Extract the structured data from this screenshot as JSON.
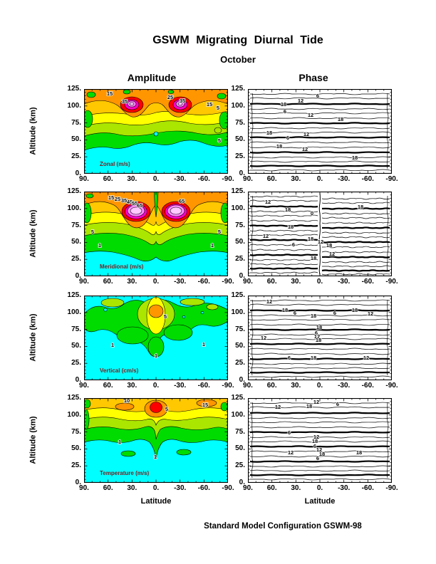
{
  "page": {
    "title": "GSWM Migrating Diurnal Tide",
    "subtitle": "October",
    "footer": "Standard Model Configuration GSWM-98"
  },
  "columns": {
    "left": "Amplitude",
    "right": "Phase"
  },
  "axes": {
    "x_label": "Latitude",
    "y_label": "Altitude (km)",
    "x_ticks": [
      "90.",
      "60.",
      "30.",
      "0.",
      "-30.",
      "-60.",
      "-90."
    ],
    "y_ticks": [
      "125.",
      "100.",
      "75.",
      "50.",
      "25.",
      "0."
    ],
    "x_range": [
      90,
      -90
    ],
    "y_range": [
      0,
      125
    ]
  },
  "colors": {
    "fill_scale": [
      "#00FFFF",
      "#00DC00",
      "#AAE600",
      "#FFFF00",
      "#FFC800",
      "#FF9600",
      "#FF0000",
      "#FF00C8",
      "#FF8CFF",
      "#FFC8FF"
    ],
    "contour_line": "#000000",
    "panel_label": "#7B1E1E",
    "background": "#FFFFFF"
  },
  "chart_data": [
    {
      "panel": "zonal-amplitude",
      "type": "contour",
      "quantity": "Zonal wind amplitude",
      "label": "Zonal (m/s)",
      "units": "m/s",
      "x_range": [
        90,
        -90
      ],
      "y_range": [
        0,
        125
      ],
      "contour_levels": [
        5,
        15,
        25,
        35,
        45
      ],
      "labels": [
        "35",
        "25",
        "35",
        "15",
        "5",
        "5",
        "15"
      ],
      "peaks": [
        {
          "lat": 30,
          "alt_km": 105,
          "value": 45
        },
        {
          "lat": -30,
          "alt_km": 105,
          "value": 45
        }
      ]
    },
    {
      "panel": "zonal-phase",
      "type": "contour",
      "quantity": "Zonal wind phase",
      "x_range": [
        90,
        -90
      ],
      "y_range": [
        0,
        125
      ],
      "contour_levels": [
        0,
        6,
        12,
        18
      ],
      "labels": [
        "6",
        "12",
        "18",
        "6",
        "12",
        "18",
        "18",
        "6",
        "12",
        "18",
        "12",
        "18"
      ]
    },
    {
      "panel": "meridional-amplitude",
      "type": "contour",
      "quantity": "Meridional wind amplitude",
      "label": "Meridional (m/s)",
      "units": "m/s",
      "x_range": [
        90,
        -90
      ],
      "y_range": [
        0,
        125
      ],
      "contour_levels": [
        1,
        5,
        15,
        25,
        35,
        45,
        55,
        65
      ],
      "labels": [
        "15",
        "25",
        "35",
        "45",
        "55",
        "65",
        "65",
        "5",
        "5",
        "1",
        "1"
      ],
      "peaks": [
        {
          "lat": 25,
          "alt_km": 95,
          "value": 70
        },
        {
          "lat": -25,
          "alt_km": 95,
          "value": 70
        }
      ]
    },
    {
      "panel": "meridional-phase",
      "type": "contour",
      "quantity": "Meridional wind phase",
      "x_range": [
        90,
        -90
      ],
      "y_range": [
        0,
        125
      ],
      "contour_levels": [
        0,
        6,
        12,
        18
      ],
      "labels": [
        "12",
        "18",
        "0",
        "18",
        "18",
        "12",
        "18",
        "6",
        "12",
        "18",
        "12",
        "18"
      ]
    },
    {
      "panel": "vertical-amplitude",
      "type": "contour",
      "quantity": "Vertical wind amplitude",
      "label": "Vertical (cm/s)",
      "units": "cm/s",
      "x_range": [
        90,
        -90
      ],
      "y_range": [
        0,
        125
      ],
      "contour_levels": [
        1,
        3,
        5
      ],
      "labels": [
        "5",
        "1",
        "1",
        "1"
      ],
      "peaks": [
        {
          "lat": 0,
          "alt_km": 100,
          "value": 7
        }
      ]
    },
    {
      "panel": "vertical-phase",
      "type": "contour",
      "quantity": "Vertical wind phase",
      "x_range": [
        90,
        -90
      ],
      "y_range": [
        0,
        125
      ],
      "contour_levels": [
        0,
        6,
        12,
        18
      ],
      "labels": [
        "12",
        "18",
        "6",
        "18",
        "6",
        "18",
        "12",
        "18",
        "6",
        "12",
        "18",
        "12",
        "6",
        "18",
        "12"
      ]
    },
    {
      "panel": "temperature-amplitude",
      "type": "contour",
      "quantity": "Temperature amplitude",
      "label": "Temperature (m/s)",
      "units": "m/s",
      "x_range": [
        90,
        -90
      ],
      "y_range": [
        0,
        125
      ],
      "contour_levels": [
        1,
        5,
        10,
        15
      ],
      "labels": [
        "10",
        "15",
        "5",
        "1",
        "1"
      ],
      "peaks": [
        {
          "lat": 0,
          "alt_km": 110,
          "value": 20
        }
      ]
    },
    {
      "panel": "temperature-phase",
      "type": "contour",
      "quantity": "Temperature phase",
      "x_range": [
        90,
        -90
      ],
      "y_range": [
        0,
        125
      ],
      "contour_levels": [
        0,
        6,
        12,
        18
      ],
      "labels": [
        "12",
        "18",
        "6",
        "12",
        "6",
        "12",
        "18",
        "6",
        "12",
        "18",
        "6",
        "18",
        "12"
      ]
    }
  ]
}
